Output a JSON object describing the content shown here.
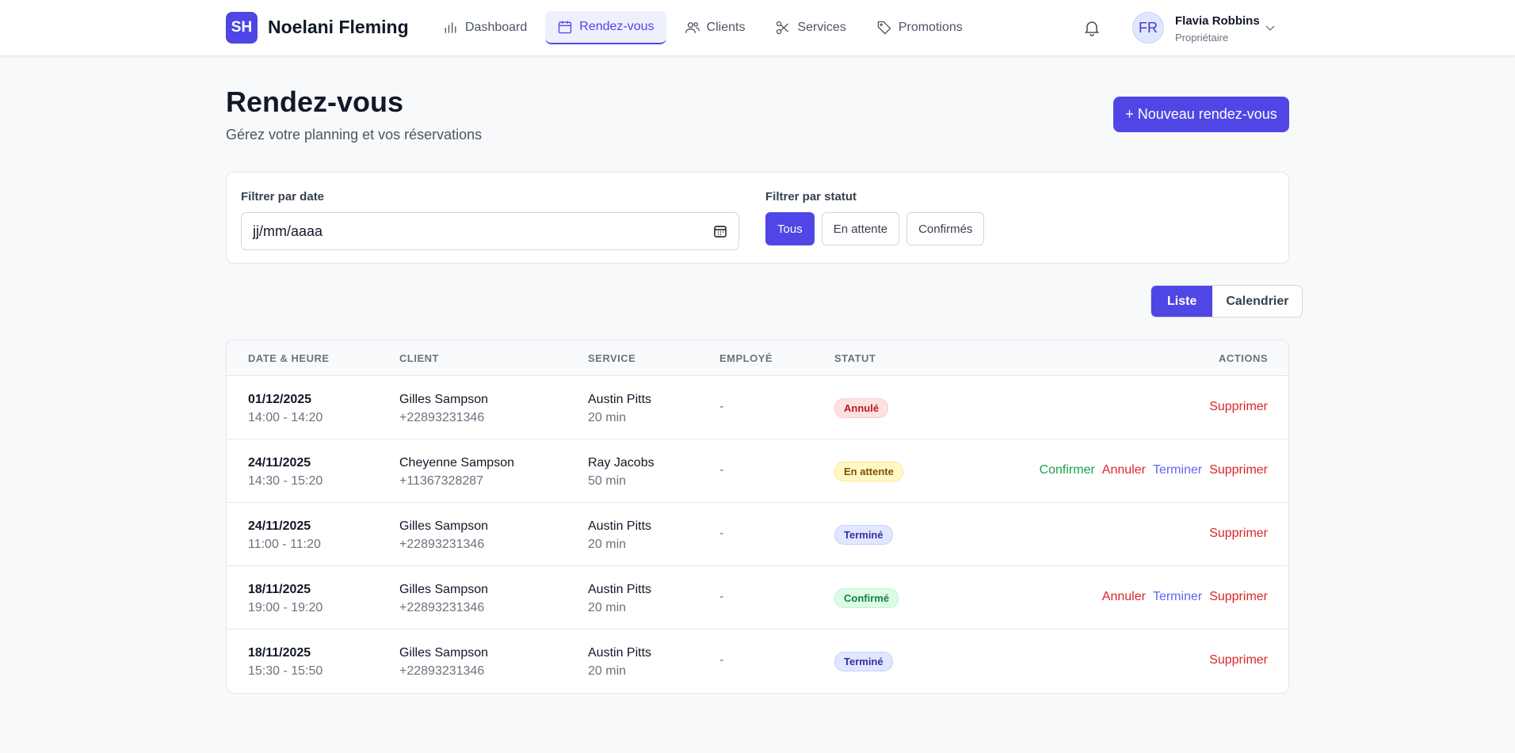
{
  "header": {
    "logo": "SH",
    "brand": "Noelani Fleming",
    "nav": [
      {
        "label": "Dashboard",
        "icon": "bar-chart-icon"
      },
      {
        "label": "Rendez-vous",
        "icon": "calendar-icon",
        "active": true
      },
      {
        "label": "Clients",
        "icon": "users-icon"
      },
      {
        "label": "Services",
        "icon": "scissors-icon"
      },
      {
        "label": "Promotions",
        "icon": "tag-icon"
      }
    ],
    "user": {
      "initials": "FR",
      "name": "Flavia Robbins",
      "role": "Propriétaire"
    }
  },
  "page": {
    "title": "Rendez-vous",
    "subtitle": "Gérez votre planning et vos réservations",
    "new_button": "+ Nouveau rendez-vous"
  },
  "filters": {
    "date_label": "Filtrer par date",
    "date_placeholder": "jj/mm/aaaa",
    "status_label": "Filtrer par statut",
    "status_options": [
      "Tous",
      "En attente",
      "Confirmés"
    ],
    "status_selected": "Tous"
  },
  "view_toggle": {
    "options": [
      "Liste",
      "Calendrier"
    ],
    "selected": "Liste"
  },
  "table": {
    "columns": [
      "DATE & HEURE",
      "CLIENT",
      "SERVICE",
      "EMPLOYÉ",
      "STATUT",
      "ACTIONS"
    ],
    "rows": [
      {
        "date": "01/12/2025",
        "time": "14:00 - 14:20",
        "client": "Gilles Sampson",
        "phone": "+22893231346",
        "service": "Austin Pitts",
        "duration": "20 min",
        "employee": "-",
        "status": "Annulé",
        "status_type": "cancelled",
        "actions": [
          "Supprimer"
        ]
      },
      {
        "date": "24/11/2025",
        "time": "14:30 - 15:20",
        "client": "Cheyenne Sampson",
        "phone": "+11367328287",
        "service": "Ray Jacobs",
        "duration": "50 min",
        "employee": "-",
        "status": "En attente",
        "status_type": "pending",
        "actions": [
          "Confirmer",
          "Annuler",
          "Terminer",
          "Supprimer"
        ]
      },
      {
        "date": "24/11/2025",
        "time": "11:00 - 11:20",
        "client": "Gilles Sampson",
        "phone": "+22893231346",
        "service": "Austin Pitts",
        "duration": "20 min",
        "employee": "-",
        "status": "Terminé",
        "status_type": "done",
        "actions": [
          "Supprimer"
        ]
      },
      {
        "date": "18/11/2025",
        "time": "19:00 - 19:20",
        "client": "Gilles Sampson",
        "phone": "+22893231346",
        "service": "Austin Pitts",
        "duration": "20 min",
        "employee": "-",
        "status": "Confirmé",
        "status_type": "confirmed",
        "actions": [
          "Annuler",
          "Terminer",
          "Supprimer"
        ]
      },
      {
        "date": "18/11/2025",
        "time": "15:30 - 15:50",
        "client": "Gilles Sampson",
        "phone": "+22893231346",
        "service": "Austin Pitts",
        "duration": "20 min",
        "employee": "-",
        "status": "Terminé",
        "status_type": "done",
        "actions": [
          "Supprimer"
        ]
      }
    ]
  },
  "colors": {
    "accent": "#4f46e5",
    "cancelled": "#b91c1c",
    "pending": "#854d0e",
    "done": "#3730a3",
    "confirmed": "#15803d",
    "action_confirm": "#16a34a",
    "action_cancel": "#dc2626",
    "action_finish": "#6366f1",
    "action_delete": "#dc2626"
  }
}
